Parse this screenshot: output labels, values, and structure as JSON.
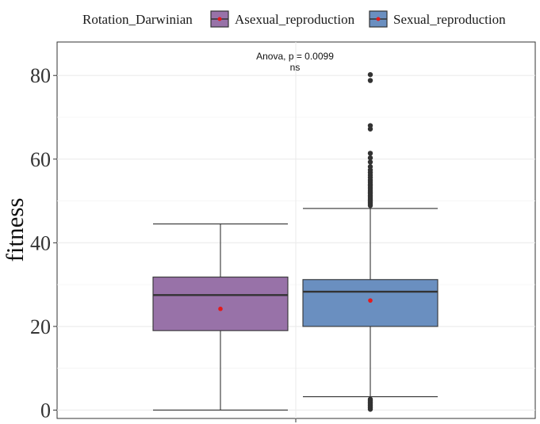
{
  "chart_data": {
    "type": "boxplot",
    "ylabel": "fitness",
    "xlabel": "",
    "ylim": [
      -2,
      88
    ],
    "yticks": [
      0,
      20,
      40,
      60,
      80
    ],
    "grid": true,
    "legend": {
      "title": "Rotation_Darwinian",
      "placement": "top",
      "entries": [
        "Asexual_reproduction",
        "Sexual_reproduction"
      ]
    },
    "annotation": {
      "line1": "Anova, p = 0.0099",
      "line2": "ns"
    },
    "mean_color": "#e41a1c",
    "series": [
      {
        "name": "Asexual_reproduction",
        "color": "#9872a8",
        "whisker_low": 0,
        "q1": 19,
        "median": 27.5,
        "q3": 31.8,
        "whisker_high": 44.5,
        "mean": 24.2,
        "outliers": []
      },
      {
        "name": "Sexual_reproduction",
        "color": "#6a8fc0",
        "whisker_low": 3.2,
        "q1": 20,
        "median": 28.3,
        "q3": 31.2,
        "whisker_high": 48.2,
        "mean": 26.2,
        "outliers": [
          80.2,
          78.8,
          68,
          67.2,
          61.4,
          60.3,
          59.3,
          58.2,
          57.4,
          56.8,
          56.2,
          55.6,
          55,
          54.5,
          54,
          53.6,
          53.1,
          52.6,
          52.2,
          51.8,
          51.3,
          50.9,
          50.5,
          50.1,
          49.7,
          49.3,
          48.9,
          2.6,
          2.3,
          2.0,
          1.7,
          1.4,
          1.1,
          0.8,
          0.5,
          0.2
        ]
      }
    ]
  }
}
